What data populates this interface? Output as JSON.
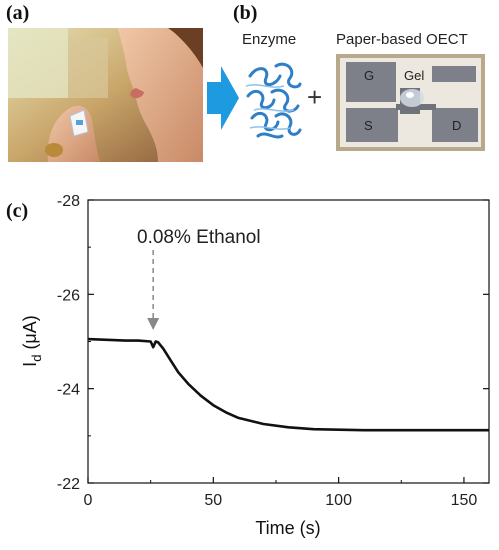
{
  "panels": {
    "a": "(a)",
    "b": "(b)",
    "c": "(c)"
  },
  "panel_b": {
    "enzyme_caption": "Enzyme",
    "device_caption": "Paper-based OECT",
    "plus": "+",
    "electrodes": {
      "gate": "G",
      "gel": "Gel",
      "source": "S",
      "drain": "D"
    }
  },
  "colors": {
    "arrow": "#1e9be0",
    "trace": "#111111",
    "annotation": "#888888"
  },
  "chart_data": {
    "type": "line",
    "xlabel": "Time (s)",
    "ylabel_main": "I",
    "ylabel_sub": "d",
    "ylabel_unit": " (μA)",
    "xlim": [
      0,
      160
    ],
    "ylim": [
      -22,
      -28
    ],
    "x_ticks": [
      "0",
      "50",
      "100",
      "150"
    ],
    "x_tick_values": [
      0,
      50,
      100,
      150
    ],
    "y_ticks": [
      "-28",
      "-26",
      "-24",
      "-22"
    ],
    "y_tick_values": [
      -28,
      -26,
      -24,
      -22
    ],
    "annotation": {
      "text": "0.08% Ethanol",
      "x": 26
    },
    "series": [
      {
        "x": [
          0,
          5,
          10,
          15,
          20,
          25,
          26,
          27,
          28,
          30,
          33,
          36,
          40,
          45,
          50,
          55,
          60,
          70,
          80,
          90,
          100,
          110,
          120,
          130,
          140,
          150,
          160
        ],
        "y": [
          -25.05,
          -25.04,
          -25.03,
          -25.02,
          -25.02,
          -25.0,
          -24.88,
          -25.0,
          -24.98,
          -24.85,
          -24.6,
          -24.35,
          -24.1,
          -23.85,
          -23.65,
          -23.5,
          -23.38,
          -23.25,
          -23.18,
          -23.14,
          -23.13,
          -23.12,
          -23.12,
          -23.12,
          -23.12,
          -23.12,
          -23.12
        ]
      }
    ]
  }
}
